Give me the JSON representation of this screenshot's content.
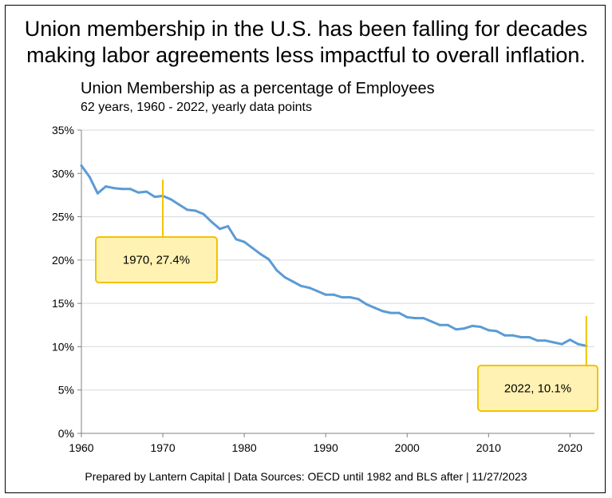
{
  "headline": {
    "line1": "Union membership in the U.S. has been falling for decades",
    "line2": "making labor agreements less impactful to overall inflation."
  },
  "footer": "Prepared by Lantern Capital | Data Sources: OECD until 1982 and BLS after | 11/27/2023",
  "colors": {
    "line": "#5b9bd5",
    "callout_fill": "#fff2b3",
    "callout_border": "#f2c200",
    "leader": "#f2c200",
    "grid": "#d9d9d9"
  },
  "chart_data": {
    "type": "line",
    "title": "Union Membership as a percentage of Employees",
    "subtitle": "62 years, 1960 - 2022, yearly data points",
    "xlabel": "",
    "ylabel": "",
    "xlim": [
      1960,
      2023
    ],
    "ylim": [
      0,
      35
    ],
    "x_ticks": [
      1960,
      1970,
      1980,
      1990,
      2000,
      2010,
      2020
    ],
    "y_ticks": [
      {
        "value": 0,
        "label": "0%"
      },
      {
        "value": 5,
        "label": "5%"
      },
      {
        "value": 10,
        "label": "10%"
      },
      {
        "value": 15,
        "label": "15%"
      },
      {
        "value": 20,
        "label": "20%"
      },
      {
        "value": 25,
        "label": "25%"
      },
      {
        "value": 30,
        "label": "30%"
      },
      {
        "value": 35,
        "label": "35%"
      }
    ],
    "grid": true,
    "series": [
      {
        "x": [
          1960,
          1961,
          1962,
          1963,
          1964,
          1965,
          1966,
          1967,
          1968,
          1969,
          1970,
          1971,
          1972,
          1973,
          1974,
          1975,
          1976,
          1977,
          1978,
          1979,
          1980,
          1981,
          1982,
          1983,
          1984,
          1985,
          1986,
          1987,
          1988,
          1989,
          1990,
          1991,
          1992,
          1993,
          1994,
          1995,
          1996,
          1997,
          1998,
          1999,
          2000,
          2001,
          2002,
          2003,
          2004,
          2005,
          2006,
          2007,
          2008,
          2009,
          2010,
          2011,
          2012,
          2013,
          2014,
          2015,
          2016,
          2017,
          2018,
          2019,
          2020,
          2021,
          2022
        ],
        "y": [
          30.9,
          29.6,
          27.7,
          28.5,
          28.3,
          28.2,
          28.2,
          27.8,
          27.9,
          27.3,
          27.4,
          27.0,
          26.4,
          25.8,
          25.7,
          25.3,
          24.4,
          23.6,
          23.9,
          22.4,
          22.1,
          21.4,
          20.7,
          20.1,
          18.8,
          18.0,
          17.5,
          17.0,
          16.8,
          16.4,
          16.0,
          16.0,
          15.7,
          15.7,
          15.5,
          14.9,
          14.5,
          14.1,
          13.9,
          13.9,
          13.4,
          13.3,
          13.3,
          12.9,
          12.5,
          12.5,
          12.0,
          12.1,
          12.4,
          12.3,
          11.9,
          11.8,
          11.3,
          11.3,
          11.1,
          11.1,
          10.7,
          10.7,
          10.5,
          10.3,
          10.8,
          10.3,
          10.1
        ]
      }
    ],
    "annotations": [
      {
        "x": 1970,
        "y": 27.4,
        "text": "1970, 27.4%"
      },
      {
        "x": 2022,
        "y": 10.1,
        "text": "2022, 10.1%"
      }
    ]
  }
}
